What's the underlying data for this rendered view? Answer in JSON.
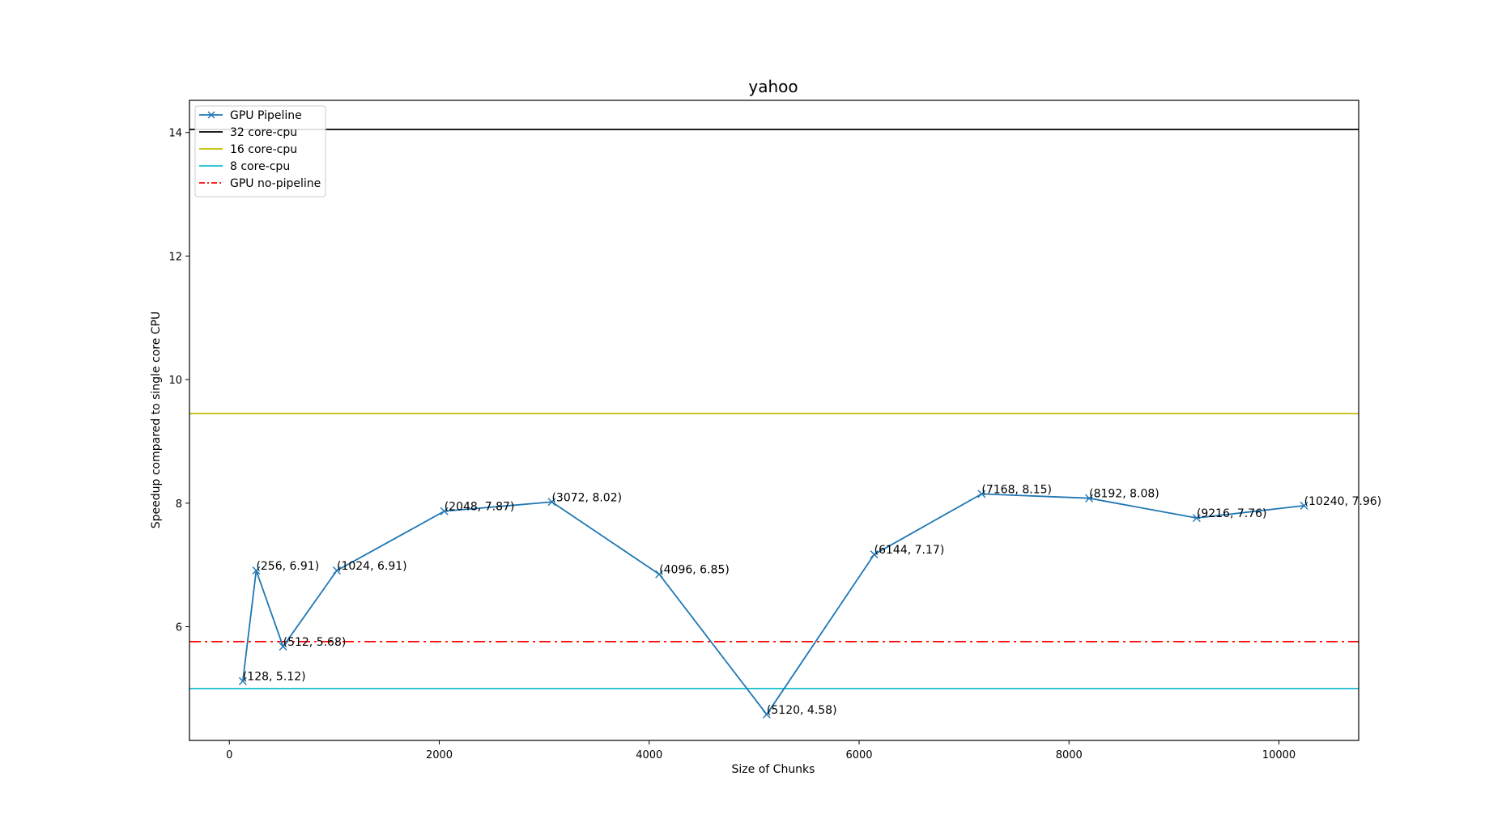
{
  "chart_data": {
    "type": "line",
    "title": "yahoo",
    "xlabel": "Size of Chunks",
    "ylabel": "Speedup compared to single core CPU",
    "xlim": [
      -380,
      10760
    ],
    "ylim": [
      4.16,
      14.52
    ],
    "xticks": [
      0,
      2000,
      4000,
      6000,
      8000,
      10000
    ],
    "yticks": [
      6,
      8,
      10,
      12,
      14
    ],
    "grid": false,
    "legend_position": "upper left",
    "series": [
      {
        "name": "GPU Pipeline",
        "color": "#1f77b4",
        "style": "solid",
        "marker": "x",
        "x": [
          128,
          256,
          512,
          1024,
          2048,
          3072,
          4096,
          5120,
          6144,
          7168,
          8192,
          9216,
          10240
        ],
        "y": [
          5.12,
          6.91,
          5.68,
          6.91,
          7.87,
          8.02,
          6.85,
          4.58,
          7.17,
          8.15,
          8.08,
          7.76,
          7.96
        ],
        "point_labels": [
          "(128, 5.12)",
          "(256, 6.91)",
          "(512, 5.68)",
          "(1024, 6.91)",
          "(2048, 7.87)",
          "(3072, 8.02)",
          "(4096, 6.85)",
          "(5120, 4.58)",
          "(6144, 7.17)",
          "(7168, 8.15)",
          "(8192, 8.08)",
          "(9216, 7.76)",
          "(10240, 7.96)"
        ]
      },
      {
        "name": "32 core-cpu",
        "color": "#000000",
        "style": "solid",
        "hline": 14.05
      },
      {
        "name": "16 core-cpu",
        "color": "#bfbf00",
        "style": "solid",
        "hline": 9.45
      },
      {
        "name": "8 core-cpu",
        "color": "#17becf",
        "style": "solid",
        "hline": 5.0
      },
      {
        "name": "GPU no-pipeline",
        "color": "#ff0000",
        "style": "dashdot",
        "hline": 5.76
      }
    ]
  }
}
